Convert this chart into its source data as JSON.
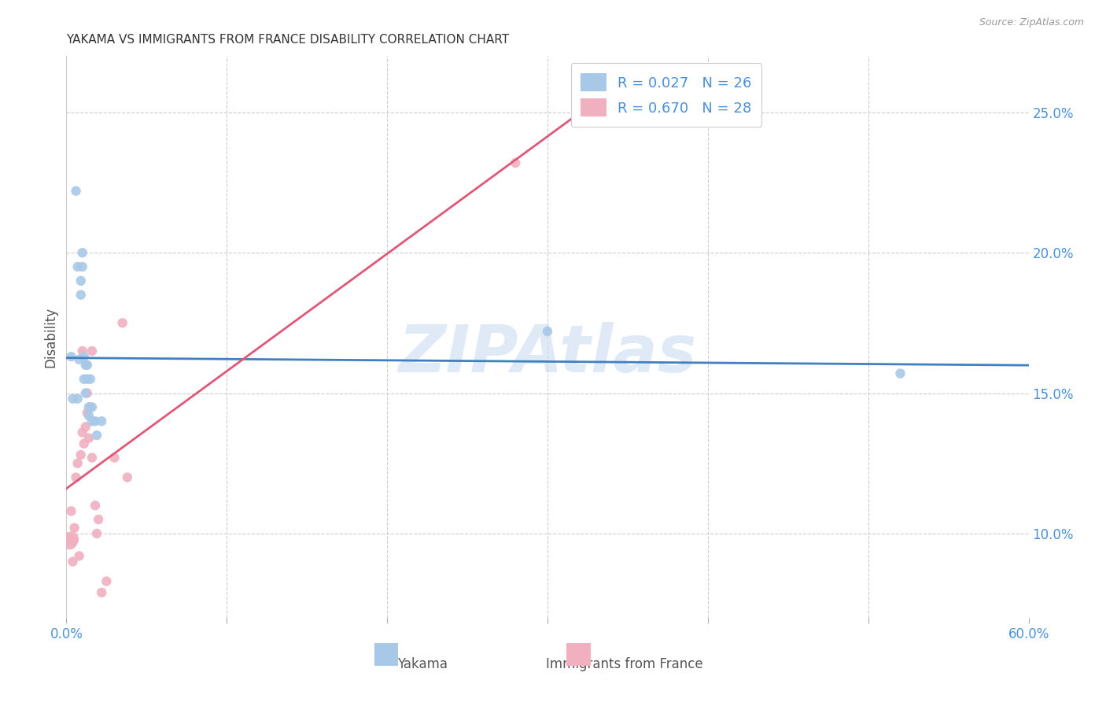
{
  "title": "YAKAMA VS IMMIGRANTS FROM FRANCE DISABILITY CORRELATION CHART",
  "source": "Source: ZipAtlas.com",
  "ylabel": "Disability",
  "xlim": [
    0.0,
    0.6
  ],
  "ylim": [
    0.07,
    0.27
  ],
  "xtick_positions": [
    0.0,
    0.1,
    0.2,
    0.3,
    0.4,
    0.5,
    0.6
  ],
  "xticklabels": [
    "0.0%",
    "",
    "",
    "",
    "",
    "",
    "60.0%"
  ],
  "ytick_positions": [
    0.1,
    0.15,
    0.2,
    0.25
  ],
  "yticklabels": [
    "10.0%",
    "15.0%",
    "20.0%",
    "25.0%"
  ],
  "background_color": "#ffffff",
  "grid_color": "#cccccc",
  "watermark_text": "ZIPAtlas",
  "legend_r1": "R = 0.027",
  "legend_n1": "N = 26",
  "legend_r2": "R = 0.670",
  "legend_n2": "N = 28",
  "yakama_color": "#a8c8e8",
  "france_color": "#f0b0c0",
  "trendline_yakama_color": "#4080c0",
  "trendline_france_color": "#e05878",
  "tick_color": "#4a90d9",
  "label_color": "#555555",
  "title_color": "#333333",
  "source_color": "#999999",
  "yakama_x": [
    0.003,
    0.004,
    0.006,
    0.007,
    0.007,
    0.008,
    0.009,
    0.009,
    0.01,
    0.01,
    0.011,
    0.011,
    0.012,
    0.012,
    0.013,
    0.013,
    0.014,
    0.014,
    0.015,
    0.016,
    0.016,
    0.018,
    0.019,
    0.022,
    0.3,
    0.52
  ],
  "yakama_y": [
    0.163,
    0.148,
    0.222,
    0.195,
    0.148,
    0.162,
    0.19,
    0.185,
    0.2,
    0.195,
    0.163,
    0.155,
    0.16,
    0.15,
    0.16,
    0.155,
    0.142,
    0.145,
    0.155,
    0.145,
    0.14,
    0.14,
    0.135,
    0.14,
    0.172,
    0.157
  ],
  "france_x": [
    0.002,
    0.003,
    0.003,
    0.004,
    0.005,
    0.006,
    0.007,
    0.008,
    0.009,
    0.01,
    0.01,
    0.011,
    0.012,
    0.013,
    0.013,
    0.014,
    0.015,
    0.016,
    0.016,
    0.018,
    0.019,
    0.02,
    0.022,
    0.025,
    0.03,
    0.035,
    0.038,
    0.28
  ],
  "france_y": [
    0.097,
    0.098,
    0.108,
    0.09,
    0.102,
    0.12,
    0.125,
    0.092,
    0.128,
    0.136,
    0.165,
    0.132,
    0.138,
    0.15,
    0.143,
    0.134,
    0.145,
    0.165,
    0.127,
    0.11,
    0.1,
    0.105,
    0.079,
    0.083,
    0.127,
    0.175,
    0.12,
    0.232
  ],
  "yakama_sizes": [
    80,
    80,
    80,
    80,
    80,
    80,
    80,
    80,
    80,
    80,
    80,
    80,
    80,
    80,
    80,
    80,
    80,
    80,
    80,
    80,
    80,
    80,
    80,
    80,
    80,
    80
  ],
  "france_sizes": [
    200,
    200,
    80,
    80,
    80,
    80,
    80,
    80,
    80,
    80,
    80,
    80,
    80,
    80,
    80,
    80,
    80,
    80,
    80,
    80,
    80,
    80,
    80,
    80,
    80,
    80,
    80,
    80
  ]
}
